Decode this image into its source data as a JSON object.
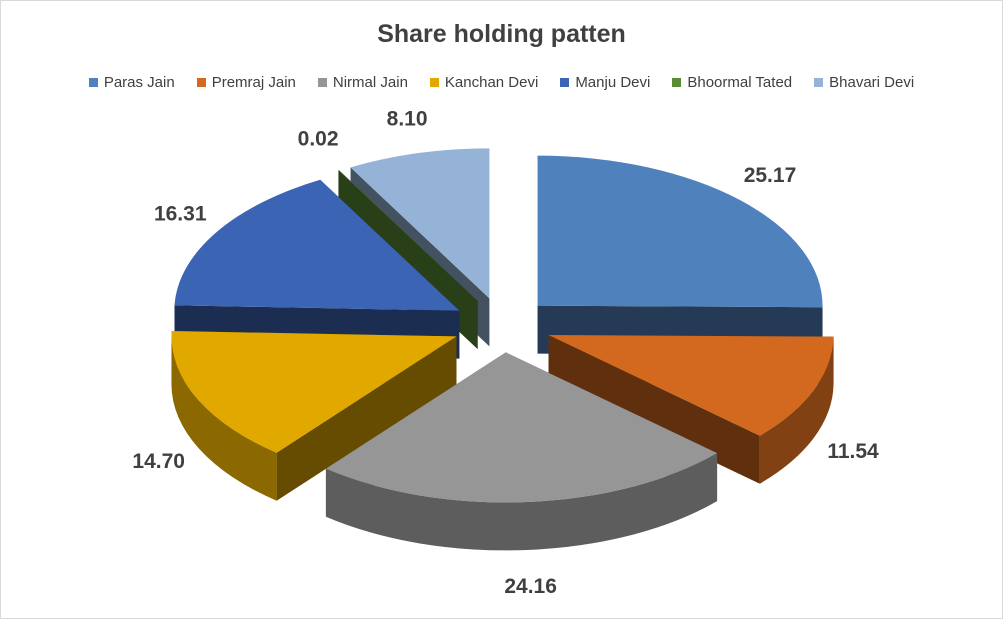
{
  "chart_data": {
    "type": "pie",
    "style": "3d-exploded",
    "title": "Share holding patten",
    "legend_position": "top",
    "categories": [
      "Paras Jain",
      "Premraj Jain",
      "Nirmal Jain",
      "Kanchan Devi",
      "Manju Devi",
      "Bhoormal Tated",
      "Bhavari Devi"
    ],
    "values": [
      25.17,
      11.54,
      24.16,
      14.7,
      16.31,
      0.02,
      8.1
    ],
    "labels": [
      "25.17",
      "11.54",
      "24.16",
      "14.70",
      "16.31",
      "0.02",
      "8.10"
    ],
    "colors": [
      "#4f81bd",
      "#d2691e",
      "#969696",
      "#e1a800",
      "#3c64b4",
      "#5a8c32",
      "#95b3d7"
    ]
  }
}
